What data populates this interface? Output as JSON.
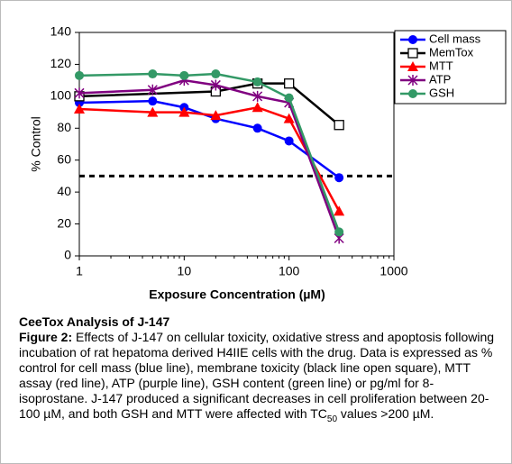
{
  "chart_data": {
    "type": "line",
    "y_label": "% Control",
    "x_label": "Exposure Concentration (µM)",
    "xlim": [
      1,
      1000
    ],
    "xticks": [
      1,
      10,
      100,
      1000
    ],
    "x_log": true,
    "ylim": [
      0,
      140
    ],
    "yticks": [
      0,
      20,
      40,
      60,
      80,
      100,
      120,
      140
    ],
    "reference_line": 50,
    "legend": "upper right",
    "series": [
      {
        "name": "Cell mass",
        "color": "#0000ff",
        "marker": "circle",
        "x": [
          1,
          5,
          10,
          20,
          50,
          100,
          300
        ],
        "values": [
          96,
          97,
          93,
          86,
          80,
          72,
          49
        ]
      },
      {
        "name": "MemTox",
        "color": "#000000",
        "marker": "square",
        "x": [
          1,
          20,
          50,
          100,
          300
        ],
        "values": [
          100,
          103,
          108,
          108,
          82
        ]
      },
      {
        "name": "MTT",
        "color": "#ff0000",
        "marker": "triangle",
        "x": [
          1,
          5,
          10,
          20,
          50,
          100,
          300
        ],
        "values": [
          92,
          90,
          90,
          88,
          93,
          86,
          28
        ]
      },
      {
        "name": "ATP",
        "color": "#800080",
        "marker": "star",
        "x": [
          1,
          5,
          10,
          20,
          50,
          100,
          300
        ],
        "values": [
          102,
          104,
          110,
          107,
          100,
          96,
          11
        ]
      },
      {
        "name": "GSH",
        "color": "#339966",
        "marker": "circle",
        "x": [
          1,
          5,
          10,
          20,
          50,
          100,
          300
        ],
        "values": [
          113,
          114,
          113,
          114,
          109,
          99,
          15
        ]
      }
    ]
  },
  "caption": {
    "heading": "CeeTox Analysis of J-147",
    "label": "Figure 2:",
    "text": " Effects of J-147 on cellular toxicity, oxidative stress and apoptosis following incubation of rat hepatoma derived H4IIE cells with the drug.  Data is expressed as % control for cell mass (blue line), membrane toxicity (black line open square), MTT assay (red line), ATP (purple line), GSH content (green line) or pg/ml for 8-isoprostane. J-147 produced a significant decreases in cell proliferation between 20-100 µM, and both GSH and MTT were affected with TC",
    "subscript": "50",
    "text_end": " values >200 µM."
  }
}
